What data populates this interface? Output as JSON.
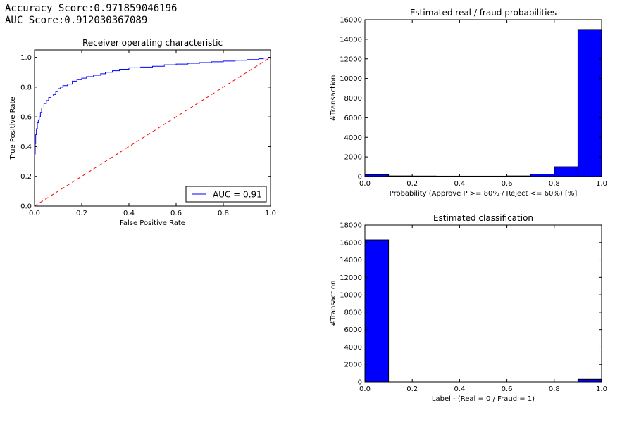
{
  "header": {
    "accuracy_text": "Accuracy Score:0.971859046196",
    "auc_text": "AUC Score:0.912030367089"
  },
  "chart_data": [
    {
      "id": "roc",
      "type": "line",
      "title": "Receiver operating characteristic",
      "xlabel": "False Positive Rate",
      "ylabel": "True Positive Rate",
      "xlim": [
        0,
        1.0
      ],
      "ylim": [
        0,
        1.05
      ],
      "xticks": [
        0.0,
        0.2,
        0.4,
        0.6,
        0.8,
        1.0
      ],
      "yticks": [
        0.0,
        0.2,
        0.4,
        0.6,
        0.8,
        1.0
      ],
      "grid": false,
      "legend": {
        "placement": "lower-right",
        "entries": [
          "AUC = 0.91"
        ]
      },
      "series": [
        {
          "name": "AUC = 0.91",
          "color": "#0000ff",
          "style": "solid",
          "x": [
            0.0,
            0.0,
            0.003,
            0.005,
            0.008,
            0.012,
            0.016,
            0.02,
            0.025,
            0.03,
            0.04,
            0.05,
            0.06,
            0.07,
            0.08,
            0.09,
            0.1,
            0.11,
            0.12,
            0.14,
            0.16,
            0.18,
            0.2,
            0.22,
            0.25,
            0.28,
            0.3,
            0.33,
            0.36,
            0.4,
            0.45,
            0.5,
            0.55,
            0.6,
            0.65,
            0.7,
            0.75,
            0.8,
            0.85,
            0.9,
            0.95,
            0.97,
            1.0
          ],
          "y": [
            0.0,
            0.35,
            0.42,
            0.48,
            0.52,
            0.56,
            0.58,
            0.6,
            0.63,
            0.66,
            0.69,
            0.71,
            0.73,
            0.74,
            0.75,
            0.77,
            0.79,
            0.8,
            0.81,
            0.82,
            0.84,
            0.85,
            0.86,
            0.87,
            0.88,
            0.89,
            0.9,
            0.91,
            0.92,
            0.93,
            0.935,
            0.94,
            0.95,
            0.955,
            0.96,
            0.965,
            0.97,
            0.975,
            0.98,
            0.985,
            0.99,
            0.995,
            1.0
          ]
        },
        {
          "name": "",
          "color": "#ff0000",
          "style": "dashed",
          "x": [
            0.0,
            1.0
          ],
          "y": [
            0.0,
            1.0
          ]
        }
      ]
    },
    {
      "id": "prob_hist",
      "type": "bar",
      "title": "Estimated real / fraud probabilities",
      "xlabel": "Probability (Approve P >= 80% / Reject <= 60%) [%]",
      "ylabel": "#Transaction",
      "xlim": [
        0,
        1.0
      ],
      "ylim": [
        0,
        16000
      ],
      "xticks": [
        0.0,
        0.2,
        0.4,
        0.6,
        0.8,
        1.0
      ],
      "yticks": [
        0,
        2000,
        4000,
        6000,
        8000,
        10000,
        12000,
        14000,
        16000
      ],
      "bin_edges": [
        0.0,
        0.1,
        0.2,
        0.3,
        0.4,
        0.5,
        0.6,
        0.7,
        0.8,
        0.9,
        1.0
      ],
      "values": [
        200,
        60,
        50,
        40,
        40,
        40,
        60,
        250,
        1000,
        15000
      ],
      "color": "#0000ff"
    },
    {
      "id": "class_hist",
      "type": "bar",
      "title": "Estimated classification",
      "xlabel": "Label - (Real = 0 / Fraud = 1)",
      "ylabel": "#Transaction",
      "xlim": [
        0,
        1.0
      ],
      "ylim": [
        0,
        18000
      ],
      "xticks": [
        0.0,
        0.2,
        0.4,
        0.6,
        0.8,
        1.0
      ],
      "yticks": [
        0,
        2000,
        4000,
        6000,
        8000,
        10000,
        12000,
        14000,
        16000,
        18000
      ],
      "bin_edges": [
        0.0,
        0.1,
        0.2,
        0.3,
        0.4,
        0.5,
        0.6,
        0.7,
        0.8,
        0.9,
        1.0
      ],
      "values": [
        16300,
        0,
        0,
        0,
        0,
        0,
        0,
        0,
        0,
        300
      ],
      "color": "#0000ff"
    }
  ]
}
